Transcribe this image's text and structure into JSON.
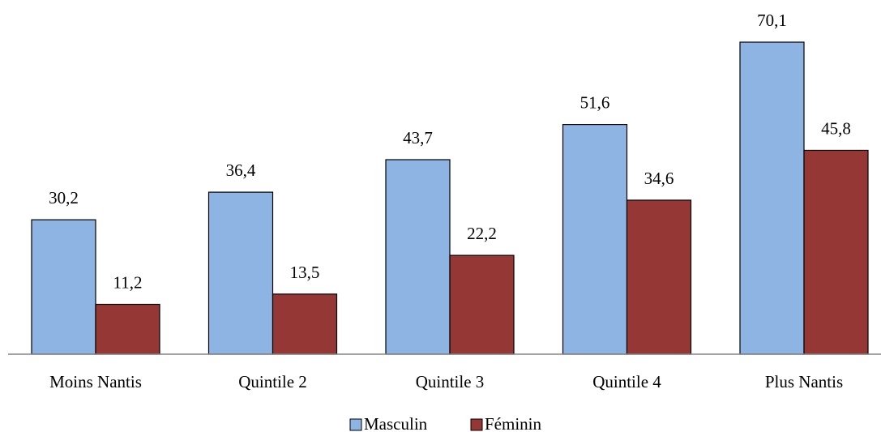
{
  "chart_data": {
    "type": "bar",
    "categories": [
      "Moins Nantis",
      "Quintile 2",
      "Quintile 3",
      "Quintile 4",
      "Plus Nantis"
    ],
    "series": [
      {
        "name": "Masculin",
        "values": [
          30.2,
          36.4,
          43.7,
          51.6,
          70.1
        ],
        "color": "#8EB4E3"
      },
      {
        "name": "Féminin",
        "values": [
          11.2,
          13.5,
          22.2,
          34.6,
          45.8
        ],
        "color": "#953735"
      }
    ],
    "value_labels": {
      "Masculin": [
        "30,2",
        "36,4",
        "43,7",
        "51,6",
        "70,1"
      ],
      "Féminin": [
        "11,2",
        "13,5",
        "22,2",
        "34,6",
        "45,8"
      ]
    },
    "ylim": [
      0,
      70.1
    ],
    "grid": false,
    "legend_position": "bottom",
    "title": "",
    "xlabel": "",
    "ylabel": ""
  }
}
